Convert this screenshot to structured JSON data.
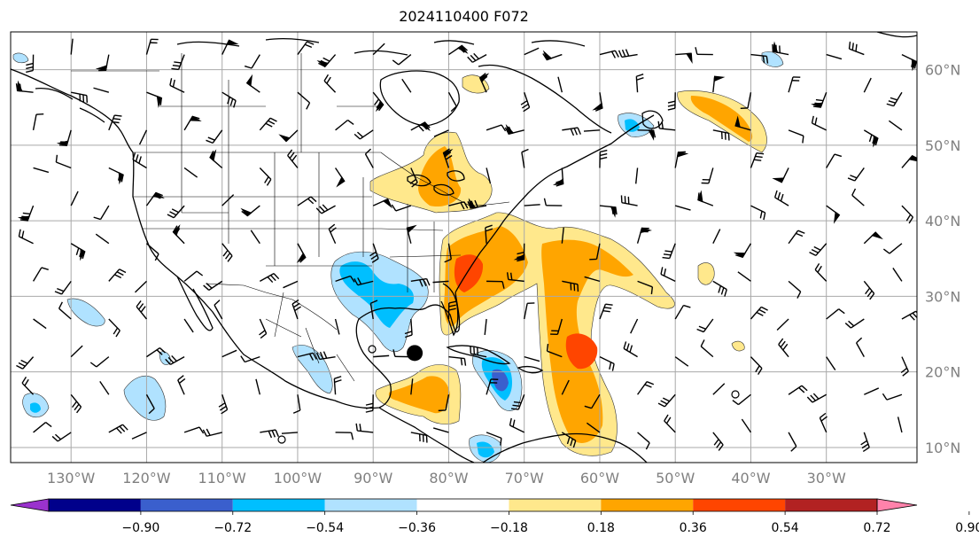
{
  "title": "2024110400 F072",
  "map": {
    "projection": "lat-lon",
    "lon_range": [
      -138,
      -18
    ],
    "lat_range": [
      8,
      65
    ],
    "lon_labels": [
      "130°W",
      "120°W",
      "110°W",
      "100°W",
      "90°W",
      "80°W",
      "70°W",
      "60°W",
      "50°W",
      "40°W",
      "30°W"
    ],
    "lon_values": [
      -130,
      -120,
      -110,
      -100,
      -90,
      -80,
      -70,
      -60,
      -50,
      -40,
      -30
    ],
    "lat_labels": [
      "10°N",
      "20°N",
      "30°N",
      "40°N",
      "50°N",
      "60°N"
    ],
    "lat_values": [
      10,
      20,
      30,
      40,
      50,
      60
    ],
    "grid": true,
    "storm_marker": {
      "lon": -84.5,
      "lat": 22.5
    }
  },
  "colorbar": {
    "tick_labels": [
      "−0.90",
      "−0.72",
      "−0.54",
      "−0.36",
      "−0.18",
      "0.18",
      "0.36",
      "0.54",
      "0.72",
      "0.90"
    ],
    "levels": [
      -0.9,
      -0.72,
      -0.54,
      -0.36,
      -0.18,
      0.18,
      0.36,
      0.54,
      0.72,
      0.9
    ],
    "colors": [
      "#9a32cd",
      "#00008b",
      "#3a5fcd",
      "#00bfff",
      "#b0e2ff",
      "#ffffff",
      "#ffe88c",
      "#ffa500",
      "#ff4500",
      "#b22222",
      "#ff82ab"
    ]
  },
  "colors": {
    "grid": "#a9a9a9",
    "coast": "#000000",
    "neg_light": "#b0e2ff",
    "neg_mid": "#00bfff",
    "neg_dark": "#3a5fcd",
    "pos_light": "#ffe88c",
    "pos_mid": "#ffa500",
    "pos_dark": "#ff4500"
  }
}
